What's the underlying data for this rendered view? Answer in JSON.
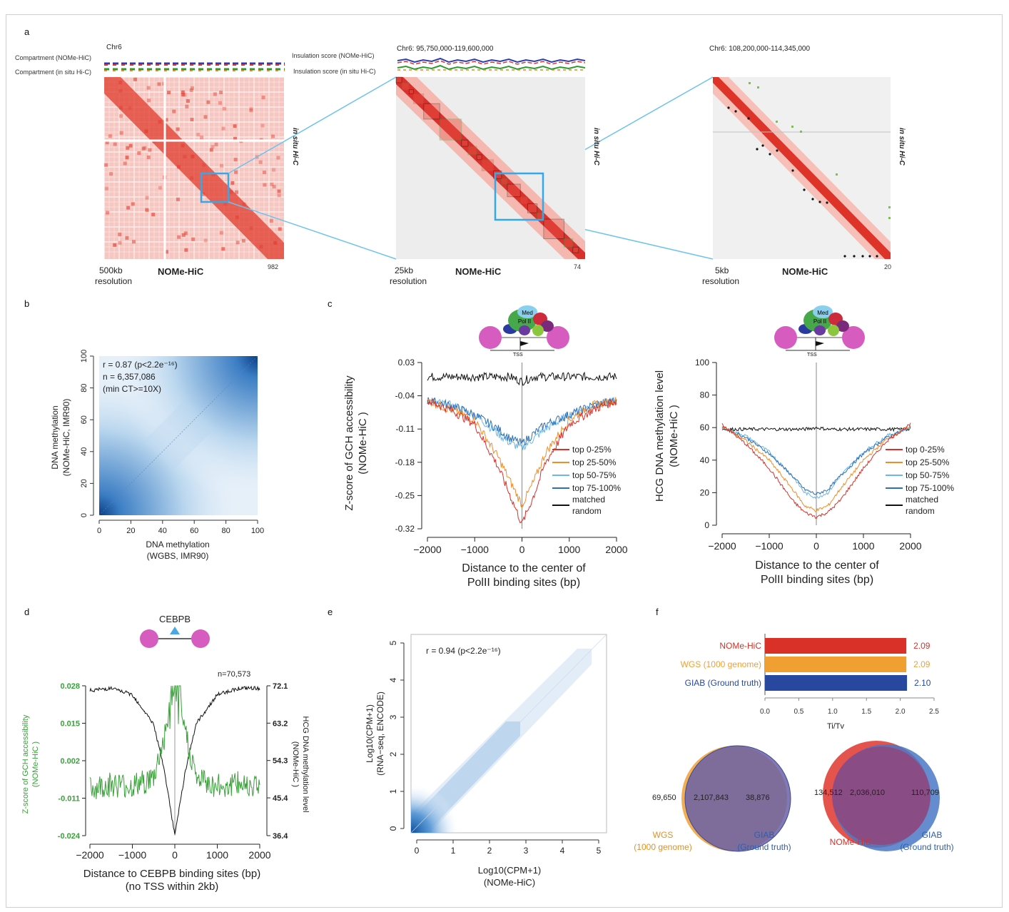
{
  "panel_labels": {
    "a": "a",
    "b": "b",
    "c": "c",
    "d": "d",
    "e": "e",
    "f": "f"
  },
  "panel_a": {
    "left": {
      "chrom": "Chr6",
      "compartment_nome": "Compartment (NOMe-HiC)",
      "compartment_insitu": "Compartment (in situ Hi-C)",
      "side_label": "in situ Hi-C",
      "bottom_center": "NOMe-HiC",
      "res_line1": "500kb",
      "res_line2": "resolution",
      "max": "982"
    },
    "middle": {
      "region": "Chr6: 95,750,000-119,600,000",
      "insulation_nome": "Insulation score (NOMe-HiC)",
      "insulation_insitu": "Insulation score (in situ Hi-C)",
      "side_label": "in situ Hi-C",
      "bottom_center": "NOMe-HiC",
      "res_line1": "25kb",
      "res_line2": "resolution",
      "max": "74"
    },
    "right": {
      "region": "Chr6: 108,200,000-114,345,000",
      "side_label": "in situ Hi-C",
      "bottom_center": "NOMe-HiC",
      "res_line1": "5kb",
      "res_line2": "resolution",
      "max": "20"
    }
  },
  "panel_b": {
    "stats": [
      "r = 0.87 (p<2.2e⁻¹⁶)",
      "n = 6,357,086",
      "(min CT>=10X)"
    ],
    "ylabel1": "DNA methylation",
    "ylabel2": "(NOMe-HiC, IMR90)",
    "xlabel1": "DNA methylation",
    "xlabel2": "(WGBS, IMR90)",
    "x_ticks": [
      "0",
      "20",
      "40",
      "60",
      "80",
      "100"
    ],
    "y_ticks": [
      "0",
      "20",
      "40",
      "60",
      "80",
      "100"
    ]
  },
  "panel_c": {
    "cartoon": {
      "med": "Med",
      "pol": "Pol II",
      "tss": "TSS"
    },
    "left": {
      "ylabel1": "Z-score of GCH accessibility",
      "ylabel2": "(NOMe-HiC )",
      "xlabel1": "Distance to the center of",
      "xlabel2": "PolII binding sites (bp)",
      "y_ticks": [
        "0.03",
        "-0.04",
        "-0.11",
        "-0.18",
        "-0.25",
        "-0.32"
      ],
      "x_ticks": [
        "−2000",
        "−1000",
        "0",
        "1000",
        "2000"
      ]
    },
    "right": {
      "ylabel1": "HCG DNA methylation level",
      "ylabel2": "(NOMe-HiC )",
      "xlabel1": "Distance to the center of",
      "xlabel2": "PolII binding sites (bp)",
      "y_ticks": [
        "0",
        "20",
        "40",
        "60",
        "80",
        "100"
      ],
      "x_ticks": [
        "−2000",
        "−1000",
        "0",
        "1000",
        "2000"
      ]
    },
    "legend": [
      "top 0-25%",
      "top 25-50%",
      "top 50-75%",
      "top 75-100%",
      "matched",
      "random"
    ]
  },
  "panel_d": {
    "factor": "CEBPB",
    "n": "n=70,573",
    "left_ticks": [
      "0.028",
      "0.015",
      "0.002",
      "-0.011",
      "-0.024"
    ],
    "right_ticks": [
      "72.1",
      "63.2",
      "54.3",
      "45.4",
      "36.4"
    ],
    "ylabel_left1": "Z-score of GCH accessibility",
    "ylabel_left2": "(NOMe-HiC )",
    "ylabel_right1": "HCG DNA methylation level",
    "ylabel_right2": "(NOMe-HiC )",
    "x_ticks": [
      "−2000",
      "−1000",
      "0",
      "1000",
      "2000"
    ],
    "xlabel1": "Distance to CEBPB binding sites (bp)",
    "xlabel2": "(no TSS within 2kb)"
  },
  "panel_e": {
    "stat": "r = 0.94 (p<2.2e⁻¹⁶)",
    "ylabel1": "Log10(CPM+1)",
    "ylabel2": "(RNA−seq, ENCODE)",
    "xlabel1": "Log10(CPM+1)",
    "xlabel2": "(NOMe-HiC)",
    "x_ticks": [
      "0",
      "1",
      "2",
      "3",
      "4",
      "5"
    ],
    "y_ticks": [
      "0",
      "1",
      "2",
      "3",
      "4",
      "5"
    ]
  },
  "panel_f": {
    "bars": [
      {
        "label": "NOMe-HiC",
        "value": "2.09",
        "color": "#d93027"
      },
      {
        "label": "WGS (1000 genome)",
        "value": "2.09",
        "color": "#f0a033"
      },
      {
        "label": "GIAB (Ground truth)",
        "value": "2.10",
        "color": "#2848a0"
      }
    ],
    "x_ticks": [
      "0.0",
      "0.5",
      "1.0",
      "1.5",
      "2.0",
      "2.5"
    ],
    "xlabel": "Ti/Tv",
    "venn1": {
      "left": "69,650",
      "mid": "2,107,843",
      "right": "38,876",
      "labelA1": "WGS",
      "labelA2": "(1000 genome)",
      "labelB1": "GIAB",
      "labelB2": "(Ground truth)"
    },
    "venn2": {
      "left": "134,512",
      "mid": "2,036,010",
      "right": "110,709",
      "labelA1": "NOMe-HiC",
      "labelB1": "GIAB",
      "labelB2": "(Ground truth)"
    }
  },
  "colors": {
    "q1": "#d9302b",
    "q2": "#f28c28",
    "q3": "#6ab7e8",
    "q4": "#2f6fb5",
    "random": "#111111",
    "green": "#3aa03a",
    "heat": "#e03b2f",
    "blue": "#2b6fb8",
    "cyan": "#4cb6e8"
  },
  "chart_data": [
    {
      "type": "line",
      "title": "",
      "xlabel": "Distance to the center of PolII binding sites (bp)",
      "ylabel": "Z-score of GCH accessibility (NOMe-HiC )",
      "xlim": [
        -2000,
        2000
      ],
      "ylim": [
        -0.32,
        0.03
      ],
      "x": [
        -2000,
        -1500,
        -1000,
        -500,
        -250,
        0,
        250,
        500,
        1000,
        1500,
        2000
      ],
      "series": [
        {
          "name": "top 0-25%",
          "values": [
            -0.05,
            -0.07,
            -0.1,
            -0.19,
            -0.25,
            -0.31,
            -0.25,
            -0.18,
            -0.1,
            -0.07,
            -0.05
          ]
        },
        {
          "name": "top 25-50%",
          "values": [
            -0.05,
            -0.07,
            -0.09,
            -0.17,
            -0.22,
            -0.27,
            -0.22,
            -0.16,
            -0.09,
            -0.06,
            -0.05
          ]
        },
        {
          "name": "top 50-75%",
          "values": [
            -0.05,
            -0.06,
            -0.08,
            -0.12,
            -0.14,
            -0.15,
            -0.13,
            -0.11,
            -0.08,
            -0.06,
            -0.05
          ]
        },
        {
          "name": "top 75-100%",
          "values": [
            -0.05,
            -0.06,
            -0.08,
            -0.11,
            -0.13,
            -0.14,
            -0.12,
            -0.1,
            -0.08,
            -0.06,
            -0.05
          ]
        },
        {
          "name": "matched random",
          "values": [
            0.0,
            0.0,
            0.0,
            0.0,
            0.0,
            -0.01,
            0.0,
            0.0,
            0.0,
            0.0,
            0.0
          ]
        }
      ]
    },
    {
      "type": "line",
      "title": "",
      "xlabel": "Distance to the center of PolII binding sites (bp)",
      "ylabel": "HCG DNA methylation level (NOMe-HiC )",
      "xlim": [
        -2000,
        2000
      ],
      "ylim": [
        0,
        100
      ],
      "x": [
        -2000,
        -1500,
        -1000,
        -500,
        -250,
        0,
        250,
        500,
        1000,
        1500,
        2000
      ],
      "series": [
        {
          "name": "top 0-25%",
          "values": [
            62,
            50,
            35,
            15,
            8,
            5,
            8,
            15,
            35,
            52,
            62
          ]
        },
        {
          "name": "top 25-50%",
          "values": [
            61,
            52,
            40,
            22,
            12,
            9,
            12,
            22,
            40,
            53,
            61
          ]
        },
        {
          "name": "top 50-75%",
          "values": [
            60,
            55,
            45,
            30,
            20,
            17,
            20,
            30,
            45,
            55,
            60
          ]
        },
        {
          "name": "top 75-100%",
          "values": [
            60,
            54,
            44,
            30,
            22,
            19,
            22,
            30,
            44,
            54,
            60
          ]
        },
        {
          "name": "matched random",
          "values": [
            59,
            59,
            59,
            59,
            59,
            60,
            59,
            59,
            59,
            59,
            59
          ]
        }
      ]
    },
    {
      "type": "line",
      "title": "",
      "xlabel": "Distance to CEBPB binding sites (bp)",
      "ylabel": "Z-score of GCH accessibility (NOMe-HiC ) / HCG DNA methylation level (NOMe-HiC )",
      "xlim": [
        -2000,
        2000
      ],
      "x": [
        -2000,
        -1500,
        -1000,
        -500,
        -250,
        0,
        250,
        500,
        1000,
        1500,
        2000
      ],
      "series": [
        {
          "values": [
            -0.008,
            -0.006,
            -0.007,
            -0.004,
            0.01,
            0.028,
            0.012,
            -0.004,
            -0.007,
            -0.006,
            -0.006
          ]
        },
        {
          "values": [
            71,
            71.5,
            70,
            63,
            52,
            36.4,
            52,
            63,
            70,
            71.5,
            71.5
          ]
        }
      ]
    },
    {
      "type": "bar",
      "title": "",
      "xlabel": "Ti/Tv",
      "xlim": [
        0,
        2.5
      ],
      "categories": [
        "NOMe-HiC",
        "WGS (1000 genome)",
        "GIAB (Ground truth)"
      ],
      "values": [
        2.09,
        2.09,
        2.1
      ]
    }
  ]
}
